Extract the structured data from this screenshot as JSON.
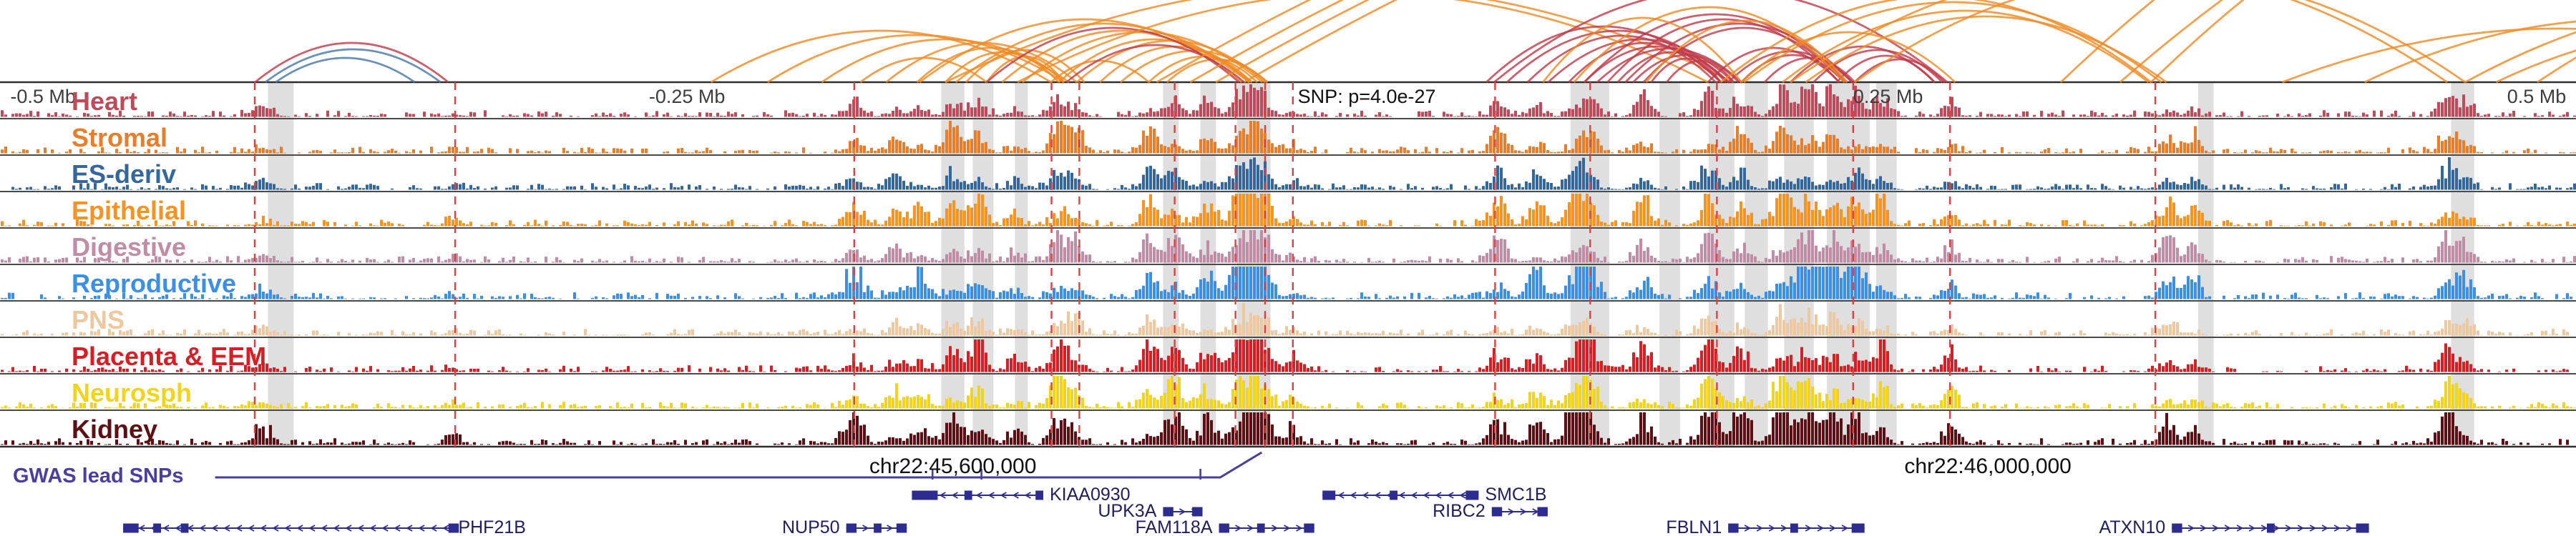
{
  "chart_data": {
    "type": "area",
    "title": "Epigenomic signal tracks with chromatin interaction arcs at a chr22 GWAS locus",
    "colors": {
      "highlight_band": "#d9d9d9",
      "snp_guide": "#d84343",
      "separator": "#4a4a4a",
      "border": "#2e2e2e"
    },
    "scale_labels": [
      {
        "text": "-0.5 Mb",
        "x": 0.004,
        "anchor": "start",
        "emph": false
      },
      {
        "text": "-0.25 Mb",
        "x": 0.2519,
        "anchor": "start",
        "emph": false
      },
      {
        "text": "SNP: p=4.0e-27",
        "x": 0.5038,
        "anchor": "start",
        "emph": true
      },
      {
        "text": "0.25 Mb",
        "x": 0.7194,
        "anchor": "start",
        "emph": false
      },
      {
        "text": "0.5 Mb",
        "x": 0.9962,
        "anchor": "end",
        "emph": false
      }
    ],
    "axis_labels": [
      {
        "text": "chr22:45,600,000",
        "x": 0.3699
      },
      {
        "text": "chr22:46,000,000",
        "x": 0.7717
      }
    ],
    "gwas": {
      "label": "GWAS lead SNPs",
      "color": "#4a3f9f",
      "line_x1": 0.0835,
      "line_x2": 0.4737,
      "tip_x": 0.4898,
      "ticks": [
        0.362,
        0.381,
        0.466
      ]
    },
    "tracks": [
      {
        "label": "Heart",
        "color": "#bf4a5a",
        "gain": 0.52
      },
      {
        "label": "Stromal",
        "color": "#e87d2a",
        "gain": 0.58
      },
      {
        "label": "ES-deriv",
        "color": "#33679e",
        "gain": 0.46
      },
      {
        "label": "Epithelial",
        "color": "#f79421",
        "gain": 0.85
      },
      {
        "label": "Digestive",
        "color": "#c08ca6",
        "gain": 0.62
      },
      {
        "label": "Reproductive",
        "color": "#3b8fe4",
        "gain": 1.0
      },
      {
        "label": "PNS",
        "color": "#eec9a0",
        "gain": 0.4
      },
      {
        "label": "Placenta & EEM",
        "color": "#d61e24",
        "gain": 0.82
      },
      {
        "label": "Neurosph",
        "color": "#f2d41c",
        "gain": 0.66
      },
      {
        "label": "Kidney",
        "color": "#5e0f14",
        "gain": 0.95
      }
    ],
    "peaks": [
      [
        0.102,
        12,
        0.28
      ],
      [
        0.176,
        9,
        0.12
      ],
      [
        0.3316,
        11,
        0.45
      ],
      [
        0.3476,
        10,
        0.42
      ],
      [
        0.3571,
        10,
        0.5
      ],
      [
        0.3699,
        10,
        0.55
      ],
      [
        0.3795,
        10,
        0.48
      ],
      [
        0.394,
        9,
        0.3
      ],
      [
        0.4113,
        11,
        0.6
      ],
      [
        0.4177,
        10,
        0.55
      ],
      [
        0.4464,
        10,
        0.48
      ],
      [
        0.456,
        10,
        0.55
      ],
      [
        0.4688,
        11,
        0.52
      ],
      [
        0.4828,
        13,
        1.0
      ],
      [
        0.4898,
        11,
        0.92
      ],
      [
        0.5019,
        9,
        0.3
      ],
      [
        0.5816,
        11,
        0.62
      ],
      [
        0.5963,
        10,
        0.5
      ],
      [
        0.6122,
        12,
        0.7
      ],
      [
        0.6173,
        9,
        0.58
      ],
      [
        0.6378,
        10,
        0.45
      ],
      [
        0.6633,
        11,
        0.6
      ],
      [
        0.676,
        10,
        0.55
      ],
      [
        0.692,
        11,
        0.6
      ],
      [
        0.7015,
        11,
        0.66
      ],
      [
        0.7111,
        10,
        0.6
      ],
      [
        0.7207,
        10,
        0.55
      ],
      [
        0.7302,
        9,
        0.45
      ],
      [
        0.757,
        9,
        0.32
      ],
      [
        0.8418,
        10,
        0.45
      ],
      [
        0.8514,
        9,
        0.38
      ],
      [
        0.9503,
        10,
        0.5
      ],
      [
        0.9566,
        9,
        0.4
      ]
    ],
    "highlights": [
      [
        0.104,
        0.01
      ],
      [
        0.3654,
        0.009
      ],
      [
        0.3776,
        0.008
      ],
      [
        0.394,
        0.005
      ],
      [
        0.4515,
        0.006
      ],
      [
        0.466,
        0.006
      ],
      [
        0.4802,
        0.013
      ],
      [
        0.6097,
        0.015
      ],
      [
        0.6442,
        0.008
      ],
      [
        0.6633,
        0.01
      ],
      [
        0.6773,
        0.009
      ],
      [
        0.6926,
        0.0115
      ],
      [
        0.7092,
        0.0166
      ],
      [
        0.7283,
        0.008
      ],
      [
        0.8533,
        0.006
      ],
      [
        0.9515,
        0.009
      ]
    ],
    "snp_lines": [
      0.0989,
      0.1767,
      0.3316,
      0.4082,
      0.419,
      0.456,
      0.4796,
      0.4911,
      0.5019,
      0.5804,
      0.6173,
      0.6665,
      0.7194,
      0.757,
      0.8367
    ],
    "arcs": {
      "colors": {
        "orange": "#f28a22",
        "red": "#c23b49",
        "blue": "#4878aa"
      },
      "items": [
        [
          0.103,
          0.171,
          "blue",
          46
        ],
        [
          0.107,
          0.161,
          "blue",
          34
        ],
        [
          0.099,
          0.174,
          "red",
          55
        ],
        [
          0.276,
          0.408,
          "orange",
          72
        ],
        [
          0.298,
          0.413,
          "orange",
          66
        ],
        [
          0.319,
          0.415,
          "orange",
          60
        ],
        [
          0.334,
          0.383,
          "orange",
          34
        ],
        [
          0.344,
          0.418,
          "orange",
          55
        ],
        [
          0.356,
          0.413,
          "orange",
          48
        ],
        [
          0.367,
          0.411,
          "orange",
          42
        ],
        [
          0.375,
          0.421,
          "orange",
          45
        ],
        [
          0.383,
          0.413,
          "orange",
          36
        ],
        [
          0.357,
          0.485,
          "orange",
          88
        ],
        [
          0.371,
          0.486,
          "orange",
          82
        ],
        [
          0.389,
          0.482,
          "orange",
          72
        ],
        [
          0.397,
          0.49,
          "orange",
          70
        ],
        [
          0.408,
          0.446,
          "orange",
          30
        ],
        [
          0.411,
          0.485,
          "orange",
          60
        ],
        [
          0.418,
          0.491,
          "orange",
          58
        ],
        [
          0.427,
          0.486,
          "orange",
          50
        ],
        [
          0.435,
          0.492,
          "orange",
          44
        ],
        [
          0.446,
          0.488,
          "orange",
          36
        ],
        [
          0.453,
          0.492,
          "orange",
          32
        ],
        [
          0.414,
          0.483,
          "red",
          52
        ],
        [
          0.383,
          0.481,
          "red",
          76
        ],
        [
          0.367,
          0.673,
          "orange",
          135
        ],
        [
          0.395,
          0.663,
          "orange",
          125
        ],
        [
          0.449,
          1.25,
          "orange",
          420
        ],
        [
          0.462,
          1.3,
          "orange",
          440
        ],
        [
          0.472,
          1.35,
          "orange",
          460
        ],
        [
          0.483,
          1.4,
          "orange",
          480
        ],
        [
          0.577,
          0.668,
          "red",
          78
        ],
        [
          0.585,
          0.671,
          "red",
          72
        ],
        [
          0.593,
          0.666,
          "red",
          65
        ],
        [
          0.601,
          0.673,
          "red",
          60
        ],
        [
          0.609,
          0.668,
          "red",
          55
        ],
        [
          0.615,
          0.671,
          "red",
          50
        ],
        [
          0.62,
          0.676,
          "red",
          47
        ],
        [
          0.628,
          0.67,
          "red",
          42
        ],
        [
          0.634,
          0.675,
          "red",
          38
        ],
        [
          0.641,
          0.668,
          "red",
          33
        ],
        [
          0.647,
          0.673,
          "red",
          30
        ],
        [
          0.615,
          0.717,
          "red",
          95
        ],
        [
          0.624,
          0.714,
          "red",
          88
        ],
        [
          0.631,
          0.719,
          "red",
          82
        ],
        [
          0.638,
          0.716,
          "red",
          76
        ],
        [
          0.663,
          0.714,
          "red",
          48
        ],
        [
          0.671,
          0.719,
          "red",
          43
        ],
        [
          0.676,
          0.716,
          "red",
          38
        ],
        [
          0.685,
          0.72,
          "red",
          34
        ],
        [
          0.695,
          0.751,
          "red",
          50
        ],
        [
          0.704,
          0.754,
          "red",
          45
        ],
        [
          0.713,
          0.751,
          "red",
          37
        ],
        [
          0.72,
          0.755,
          "red",
          32
        ],
        [
          0.58,
          0.756,
          "red",
          130
        ],
        [
          0.599,
          0.676,
          "orange",
          90
        ],
        [
          0.611,
          0.716,
          "orange",
          105
        ],
        [
          0.639,
          0.717,
          "orange",
          86
        ],
        [
          0.668,
          0.835,
          "orange",
          120
        ],
        [
          0.677,
          0.839,
          "orange",
          112
        ],
        [
          0.692,
          0.834,
          "orange",
          100
        ],
        [
          0.701,
          0.841,
          "orange",
          92
        ],
        [
          0.676,
          0.759,
          "orange",
          70
        ],
        [
          0.695,
          0.95,
          "orange",
          160
        ],
        [
          0.72,
          0.957,
          "orange",
          150
        ],
        [
          0.8,
          1.3,
          "orange",
          430
        ],
        [
          0.823,
          1.35,
          "orange",
          415
        ],
        [
          0.835,
          1.28,
          "orange",
          390
        ],
        [
          0.886,
          1.1,
          "orange",
          75
        ],
        [
          0.918,
          1.12,
          "orange",
          88
        ],
        [
          0.957,
          1.2,
          "orange",
          120
        ],
        [
          0.969,
          1.15,
          "orange",
          78
        ],
        [
          0.985,
          1.3,
          "orange",
          190
        ]
      ]
    },
    "genes": {
      "color": "#2d2d8f",
      "label_color": "#1f1f5f",
      "items": [
        {
          "label": "PHF21B",
          "x1": 0.0478,
          "x2": 0.1754,
          "row": 2,
          "strand": "-",
          "side": "right",
          "exons": [
            [
              0.0478,
              0.006
            ],
            [
              0.0595,
              0.003
            ],
            [
              0.0702,
              0.003
            ],
            [
              0.1741,
              0.004
            ]
          ]
        },
        {
          "label": "NUP50",
          "x1": 0.3285,
          "x2": 0.352,
          "row": 2,
          "strand": "+",
          "side": "left",
          "exons": [
            [
              0.3285,
              0.004
            ],
            [
              0.3392,
              0.003
            ],
            [
              0.348,
              0.004
            ]
          ]
        },
        {
          "label": "KIAA0930",
          "x1": 0.354,
          "x2": 0.405,
          "row": 0,
          "strand": "-",
          "side": "right",
          "exons": [
            [
              0.354,
              0.01
            ],
            [
              0.3744,
              0.003
            ],
            [
              0.402,
              0.003
            ]
          ]
        },
        {
          "label": "UPK3A",
          "x1": 0.4515,
          "x2": 0.4668,
          "row": 1,
          "strand": "+",
          "side": "left",
          "exons": [
            [
              0.4515,
              0.004
            ],
            [
              0.4628,
              0.004
            ]
          ]
        },
        {
          "label": "FAM118A",
          "x1": 0.4732,
          "x2": 0.5102,
          "row": 2,
          "strand": "+",
          "side": "left",
          "exons": [
            [
              0.4732,
              0.004
            ],
            [
              0.488,
              0.003
            ],
            [
              0.5062,
              0.004
            ]
          ]
        },
        {
          "label": "SMC1B",
          "x1": 0.5134,
          "x2": 0.574,
          "row": 0,
          "strand": "-",
          "side": "right",
          "exons": [
            [
              0.5134,
              0.005
            ],
            [
              0.5395,
              0.003
            ],
            [
              0.569,
              0.005
            ]
          ]
        },
        {
          "label": "RIBC2",
          "x1": 0.5791,
          "x2": 0.6008,
          "row": 1,
          "strand": "+",
          "side": "left",
          "exons": [
            [
              0.5791,
              0.004
            ],
            [
              0.5968,
              0.004
            ]
          ]
        },
        {
          "label": "FBLN1",
          "x1": 0.6709,
          "x2": 0.7238,
          "row": 2,
          "strand": "+",
          "side": "left",
          "exons": [
            [
              0.6709,
              0.004
            ],
            [
              0.695,
              0.003
            ],
            [
              0.7188,
              0.005
            ]
          ]
        },
        {
          "label": "ATXN10",
          "x1": 0.8431,
          "x2": 0.9196,
          "row": 2,
          "strand": "+",
          "side": "left",
          "exons": [
            [
              0.8431,
              0.004
            ],
            [
              0.88,
              0.003
            ],
            [
              0.9146,
              0.005
            ]
          ]
        }
      ]
    }
  }
}
